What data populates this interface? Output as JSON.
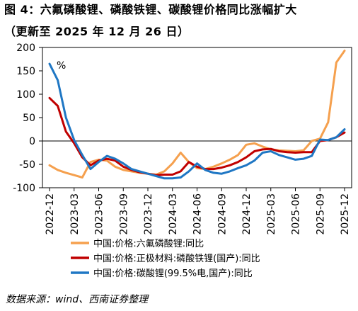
{
  "header": {
    "title_line1": "图 4：六氟磷酸锂、磷酸铁锂、碳酸锂价格同比涨幅扩大",
    "title_line2": "（更新至 2025 年 12 月 26 日）"
  },
  "source": "数据来源：wind、西南证券整理",
  "chart_data": {
    "type": "line",
    "unit_label": "%",
    "ylim": [
      -100,
      200
    ],
    "yticks": [
      -100,
      -50,
      0,
      50,
      100,
      150,
      200
    ],
    "xticks": [
      "2022-12",
      "2023-03",
      "2023-06",
      "2023-09",
      "2023-12",
      "2024-03",
      "2024-06",
      "2024-09",
      "2024-12",
      "2025-03",
      "2025-06",
      "2025-09",
      "2025-12"
    ],
    "x": [
      "2022-12",
      "2023-01",
      "2023-02",
      "2023-03",
      "2023-04",
      "2023-05",
      "2023-06",
      "2023-07",
      "2023-08",
      "2023-09",
      "2023-10",
      "2023-11",
      "2023-12",
      "2024-01",
      "2024-02",
      "2024-03",
      "2024-04",
      "2024-05",
      "2024-06",
      "2024-07",
      "2024-08",
      "2024-09",
      "2024-10",
      "2024-11",
      "2024-12",
      "2025-01",
      "2025-02",
      "2025-03",
      "2025-04",
      "2025-05",
      "2025-06",
      "2025-07",
      "2025-08",
      "2025-09",
      "2025-10",
      "2025-11",
      "2025-12"
    ],
    "series": [
      {
        "name": "中国:价格:六氟磷酸锂:同比",
        "color": "#f5a04e",
        "values": [
          -52,
          -62,
          -68,
          -73,
          -78,
          -45,
          -40,
          -42,
          -55,
          -62,
          -65,
          -68,
          -70,
          -72,
          -65,
          -48,
          -25,
          -45,
          -58,
          -60,
          -55,
          -48,
          -40,
          -30,
          -8,
          -5,
          -12,
          -18,
          -20,
          -21,
          -22,
          -20,
          0,
          5,
          40,
          168,
          193
        ]
      },
      {
        "name": "中国:价格:正极材料:磷酸铁锂(国产):同比",
        "color": "#c00000",
        "values": [
          92,
          75,
          20,
          -5,
          -35,
          -52,
          -42,
          -38,
          -42,
          -55,
          -62,
          -67,
          -70,
          -73,
          -72,
          -72,
          -65,
          -45,
          -55,
          -60,
          -60,
          -57,
          -52,
          -45,
          -35,
          -22,
          -18,
          -17,
          -22,
          -24,
          -25,
          -24,
          -24,
          0,
          2,
          8,
          18
        ]
      },
      {
        "name": "中国:价格:碳酸锂(99.5%电,国产):同比",
        "color": "#1f77c4",
        "values": [
          165,
          130,
          50,
          2,
          -30,
          -60,
          -45,
          -32,
          -38,
          -48,
          -60,
          -65,
          -70,
          -75,
          -80,
          -80,
          -78,
          -65,
          -48,
          -62,
          -68,
          -70,
          -65,
          -58,
          -52,
          -42,
          -25,
          -22,
          -30,
          -35,
          -40,
          -38,
          -32,
          3,
          2,
          8,
          25
        ]
      }
    ]
  }
}
